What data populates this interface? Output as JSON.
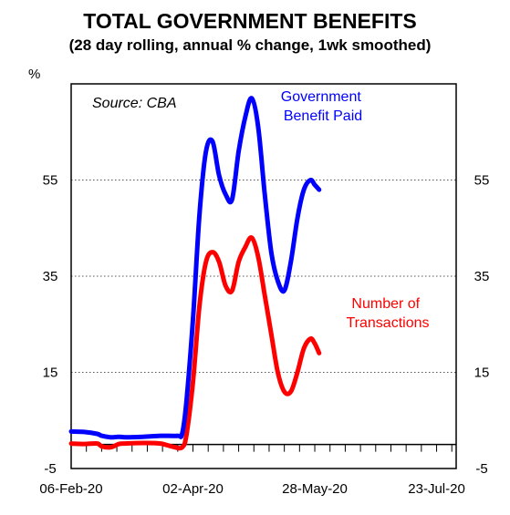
{
  "chart_data": {
    "type": "line",
    "title": "TOTAL GOVERNMENT BENEFITS",
    "subtitle": "(28 day rolling, annual % change,  1wk smoothed)",
    "ylabel": "%",
    "source": "Source: CBA",
    "ylim": [
      -5,
      75
    ],
    "yticks": [
      -5,
      15,
      35,
      55
    ],
    "xlim": [
      "2020-02-06",
      "2020-08-01"
    ],
    "xtick_labels": [
      "06-Feb-20",
      "02-Apr-20",
      "28-May-20",
      "23-Jul-20"
    ],
    "xtick_dates": [
      "2020-02-06",
      "2020-04-02",
      "2020-05-28",
      "2020-07-23"
    ],
    "grid": "horizontal-dotted",
    "series": [
      {
        "name": "Government Benefit Paid",
        "label_lines": [
          "Government",
          "Benefit Paid"
        ],
        "color": "#0000ff",
        "x": [
          "2020-02-06",
          "2020-02-12",
          "2020-02-18",
          "2020-02-20",
          "2020-02-24",
          "2020-02-28",
          "2020-03-02",
          "2020-03-10",
          "2020-03-18",
          "2020-03-26",
          "2020-03-28",
          "2020-03-30",
          "2020-04-02",
          "2020-04-05",
          "2020-04-08",
          "2020-04-11",
          "2020-04-14",
          "2020-04-17",
          "2020-04-20",
          "2020-04-23",
          "2020-04-26",
          "2020-04-29",
          "2020-05-02",
          "2020-05-05",
          "2020-05-08",
          "2020-05-11",
          "2020-05-14",
          "2020-05-17",
          "2020-05-20",
          "2020-05-23",
          "2020-05-26",
          "2020-05-28",
          "2020-05-30"
        ],
        "values": [
          2.7,
          2.6,
          2.2,
          1.8,
          1.5,
          1.6,
          1.5,
          1.6,
          1.8,
          1.8,
          2.2,
          9,
          26,
          48,
          61,
          63,
          56,
          52,
          51,
          61,
          68,
          72,
          66,
          52,
          40,
          34,
          32,
          38,
          47,
          53,
          55,
          54,
          53
        ]
      },
      {
        "name": "Number of Transactions",
        "label_lines": [
          "Number of",
          "Transactions"
        ],
        "color": "#ff0000",
        "x": [
          "2020-02-06",
          "2020-02-12",
          "2020-02-18",
          "2020-02-20",
          "2020-02-24",
          "2020-02-28",
          "2020-03-02",
          "2020-03-10",
          "2020-03-18",
          "2020-03-24",
          "2020-03-28",
          "2020-03-30",
          "2020-04-02",
          "2020-04-05",
          "2020-04-08",
          "2020-04-11",
          "2020-04-14",
          "2020-04-17",
          "2020-04-20",
          "2020-04-23",
          "2020-04-26",
          "2020-04-29",
          "2020-05-02",
          "2020-05-05",
          "2020-05-08",
          "2020-05-11",
          "2020-05-14",
          "2020-05-17",
          "2020-05-20",
          "2020-05-23",
          "2020-05-26",
          "2020-05-28",
          "2020-05-30"
        ],
        "values": [
          0.2,
          0.1,
          0.2,
          -0.4,
          -0.6,
          0.1,
          0.2,
          0.3,
          0.2,
          -0.5,
          -0.6,
          2,
          13,
          29,
          38,
          40,
          38,
          33,
          32,
          38,
          41,
          43,
          39,
          31,
          23,
          15,
          11,
          11,
          15,
          20,
          22,
          21,
          19
        ]
      }
    ]
  }
}
